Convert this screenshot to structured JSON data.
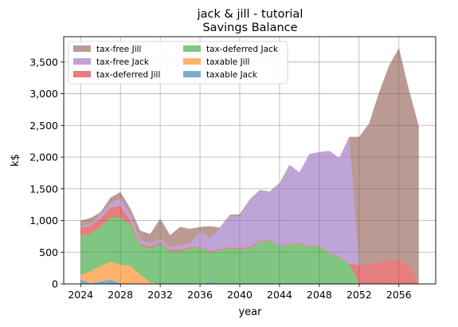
{
  "chart_data": {
    "type": "area",
    "title": "jack & jill - tutorial",
    "subtitle": "Savings Balance",
    "xlabel": "year",
    "ylabel": "k$",
    "xlim": [
      2022.3,
      2059.7
    ],
    "ylim": [
      0,
      3900
    ],
    "xticks": [
      2024,
      2028,
      2032,
      2036,
      2040,
      2044,
      2048,
      2052,
      2056
    ],
    "xtick_labels": [
      "2024",
      "2028",
      "2032",
      "2036",
      "2040",
      "2044",
      "2048",
      "2052",
      "2056"
    ],
    "yticks": [
      0,
      500,
      1000,
      1500,
      2000,
      2500,
      3000,
      3500
    ],
    "ytick_labels": [
      "0",
      "500",
      "1,000",
      "1,500",
      "2,000",
      "2,500",
      "3,000",
      "3,500"
    ],
    "grid": true,
    "stacked": true,
    "legend_position": "upper-left",
    "legend_columns": 2,
    "x": [
      2024,
      2025,
      2026,
      2027,
      2028,
      2029,
      2030,
      2031,
      2032,
      2033,
      2034,
      2035,
      2036,
      2037,
      2038,
      2039,
      2040,
      2041,
      2042,
      2043,
      2044,
      2045,
      2046,
      2047,
      2048,
      2049,
      2050,
      2051,
      2052,
      2053,
      2054,
      2055,
      2056,
      2057,
      2058
    ],
    "series": [
      {
        "name": "taxable Jack",
        "color": "#1f77b4",
        "values": [
          70,
          10,
          40,
          70,
          10,
          0,
          0,
          0,
          0,
          0,
          0,
          0,
          0,
          40,
          10,
          0,
          0,
          0,
          0,
          0,
          0,
          0,
          0,
          0,
          0,
          0,
          0,
          0,
          0,
          0,
          0,
          0,
          0,
          0,
          0
        ]
      },
      {
        "name": "taxable Jill",
        "color": "#ff7f0e",
        "values": [
          70,
          190,
          240,
          280,
          290,
          290,
          140,
          20,
          0,
          0,
          0,
          0,
          0,
          0,
          0,
          0,
          0,
          0,
          0,
          0,
          0,
          0,
          0,
          0,
          0,
          0,
          0,
          0,
          0,
          0,
          0,
          0,
          0,
          0,
          0
        ]
      },
      {
        "name": "tax-deferred Jack",
        "color": "#2ca02c",
        "values": [
          610,
          590,
          620,
          700,
          750,
          650,
          460,
          540,
          640,
          510,
          510,
          560,
          580,
          460,
          520,
          560,
          550,
          560,
          660,
          680,
          600,
          620,
          630,
          590,
          590,
          480,
          420,
          320,
          0,
          0,
          0,
          0,
          0,
          0,
          0
        ]
      },
      {
        "name": "tax-deferred Jill",
        "color": "#d62728",
        "values": [
          140,
          130,
          130,
          160,
          180,
          50,
          30,
          30,
          20,
          30,
          30,
          20,
          10,
          20,
          20,
          20,
          20,
          20,
          20,
          10,
          10,
          10,
          20,
          10,
          10,
          10,
          10,
          0,
          300,
          310,
          340,
          370,
          380,
          300,
          0
        ]
      },
      {
        "name": "tax-free Jack",
        "color": "#9467bd",
        "values": [
          20,
          30,
          60,
          60,
          120,
          90,
          60,
          50,
          40,
          40,
          60,
          60,
          230,
          200,
          320,
          490,
          500,
          730,
          780,
          770,
          960,
          1250,
          1110,
          1450,
          1480,
          1610,
          1560,
          2000,
          0,
          0,
          0,
          0,
          0,
          0,
          0
        ]
      },
      {
        "name": "tax-free Jill",
        "color": "#8c564b",
        "values": [
          90,
          90,
          40,
          90,
          100,
          110,
          150,
          150,
          330,
          190,
          300,
          230,
          80,
          190,
          20,
          20,
          30,
          20,
          20,
          0,
          20,
          0,
          0,
          0,
          0,
          0,
          0,
          0,
          2020,
          2220,
          2680,
          3070,
          3340,
          2770,
          2490
        ]
      }
    ],
    "legend": [
      {
        "label": "tax-free Jill",
        "color": "#8c564b"
      },
      {
        "label": "tax-deferred Jack",
        "color": "#2ca02c"
      },
      {
        "label": "tax-free Jack",
        "color": "#9467bd"
      },
      {
        "label": "taxable Jill",
        "color": "#ff7f0e"
      },
      {
        "label": "tax-deferred Jill",
        "color": "#d62728"
      },
      {
        "label": "taxable Jack",
        "color": "#1f77b4"
      }
    ]
  }
}
